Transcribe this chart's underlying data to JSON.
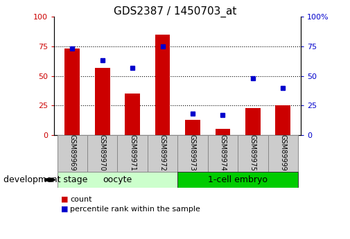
{
  "title": "GDS2387 / 1450703_at",
  "categories": [
    "GSM89969",
    "GSM89970",
    "GSM89971",
    "GSM89972",
    "GSM89973",
    "GSM89974",
    "GSM89975",
    "GSM89999"
  ],
  "red_bars": [
    73,
    57,
    35,
    85,
    13,
    5,
    23,
    25
  ],
  "blue_dots": [
    73,
    63,
    57,
    75,
    18,
    17,
    48,
    40
  ],
  "oocyte_indices": [
    0,
    1,
    2,
    3
  ],
  "embryo_indices": [
    4,
    5,
    6,
    7
  ],
  "group_row_label": "development stage",
  "ylim": [
    0,
    100
  ],
  "yticks": [
    0,
    25,
    50,
    75,
    100
  ],
  "red_color": "#CC0000",
  "blue_color": "#0000CC",
  "bar_width": 0.5,
  "title_fontsize": 11,
  "axis_fontsize": 8,
  "tick_fontsize": 8,
  "legend_fontsize": 8,
  "group_label_fontsize": 9,
  "group_row_fontsize": 9,
  "sample_box_color": "#CCCCCC",
  "oocyte_color": "#CCFFCC",
  "embryo_color": "#00CC00",
  "plot_bg": "#FFFFFF"
}
